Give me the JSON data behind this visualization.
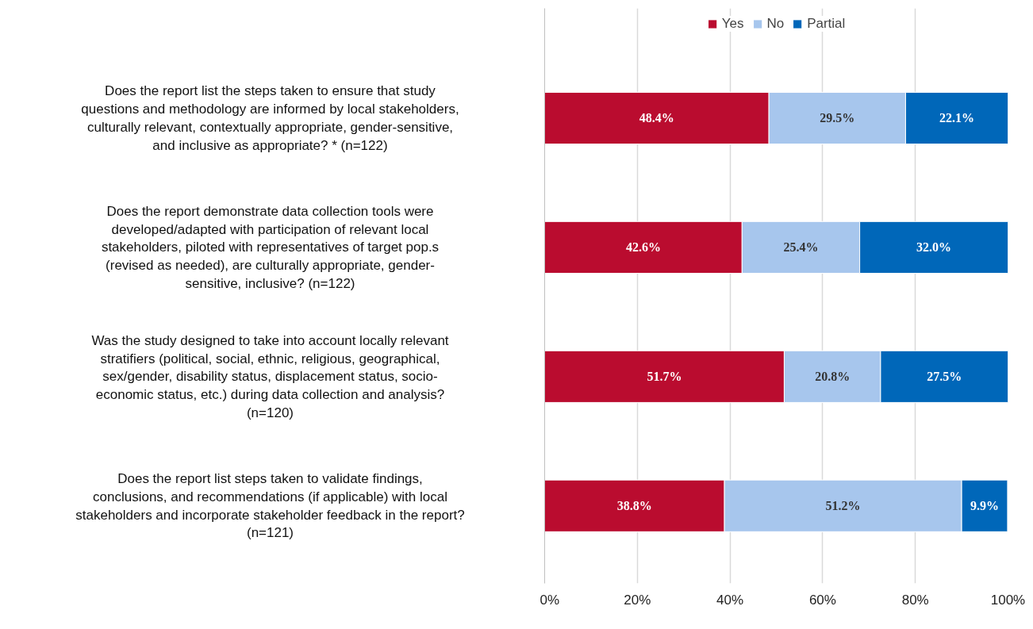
{
  "chart_data": {
    "type": "bar",
    "orientation": "horizontal",
    "stacked": true,
    "categories": [
      "Does the report list the steps taken to ensure that study questions and methodology are informed by local stakeholders, culturally relevant, contextually appropriate, gender-sensitive, and inclusive as appropriate? * (n=122)",
      "Does the report demonstrate data collection tools were developed/adapted with participation of relevant local stakeholders, piloted with representatives of target pop.s (revised as needed), are culturally appropriate, gender-sensitive, inclusive? (n=122)",
      "Was the study designed to take into account locally relevant stratifiers (political, social, ethnic, religious, geographical, sex/gender, disability status, displacement status, socio-economic status, etc.) during data collection and analysis? (n=120)",
      "Does the report list steps taken to validate findings, conclusions, and recommendations (if applicable) with local stakeholders and incorporate stakeholder feedback in the report? (n=121)"
    ],
    "series": [
      {
        "name": "Yes",
        "color": "#ba0c2f",
        "values": [
          48.4,
          42.6,
          51.7,
          38.8
        ],
        "value_labels": [
          "48.4%",
          "42.6%",
          "51.7%",
          "38.8%"
        ]
      },
      {
        "name": "No",
        "color": "#a7c6ed",
        "values": [
          29.5,
          25.4,
          20.8,
          51.2
        ],
        "value_labels": [
          "29.5%",
          "25.4%",
          "20.8%",
          "51.2%"
        ]
      },
      {
        "name": "Partial",
        "color": "#0067b9",
        "values": [
          22.1,
          32.0,
          27.5,
          9.9
        ],
        "value_labels": [
          "22.1%",
          "32.0%",
          "27.5%",
          "9.9%"
        ]
      }
    ],
    "xlim": [
      0,
      100
    ],
    "xticks": [
      {
        "value": 0,
        "label": "0%"
      },
      {
        "value": 20,
        "label": "20%"
      },
      {
        "value": 40,
        "label": "40%"
      },
      {
        "value": 60,
        "label": "60%"
      },
      {
        "value": 80,
        "label": "80%"
      },
      {
        "value": 100,
        "label": "100%"
      }
    ],
    "grid": "x",
    "legend": "top"
  }
}
